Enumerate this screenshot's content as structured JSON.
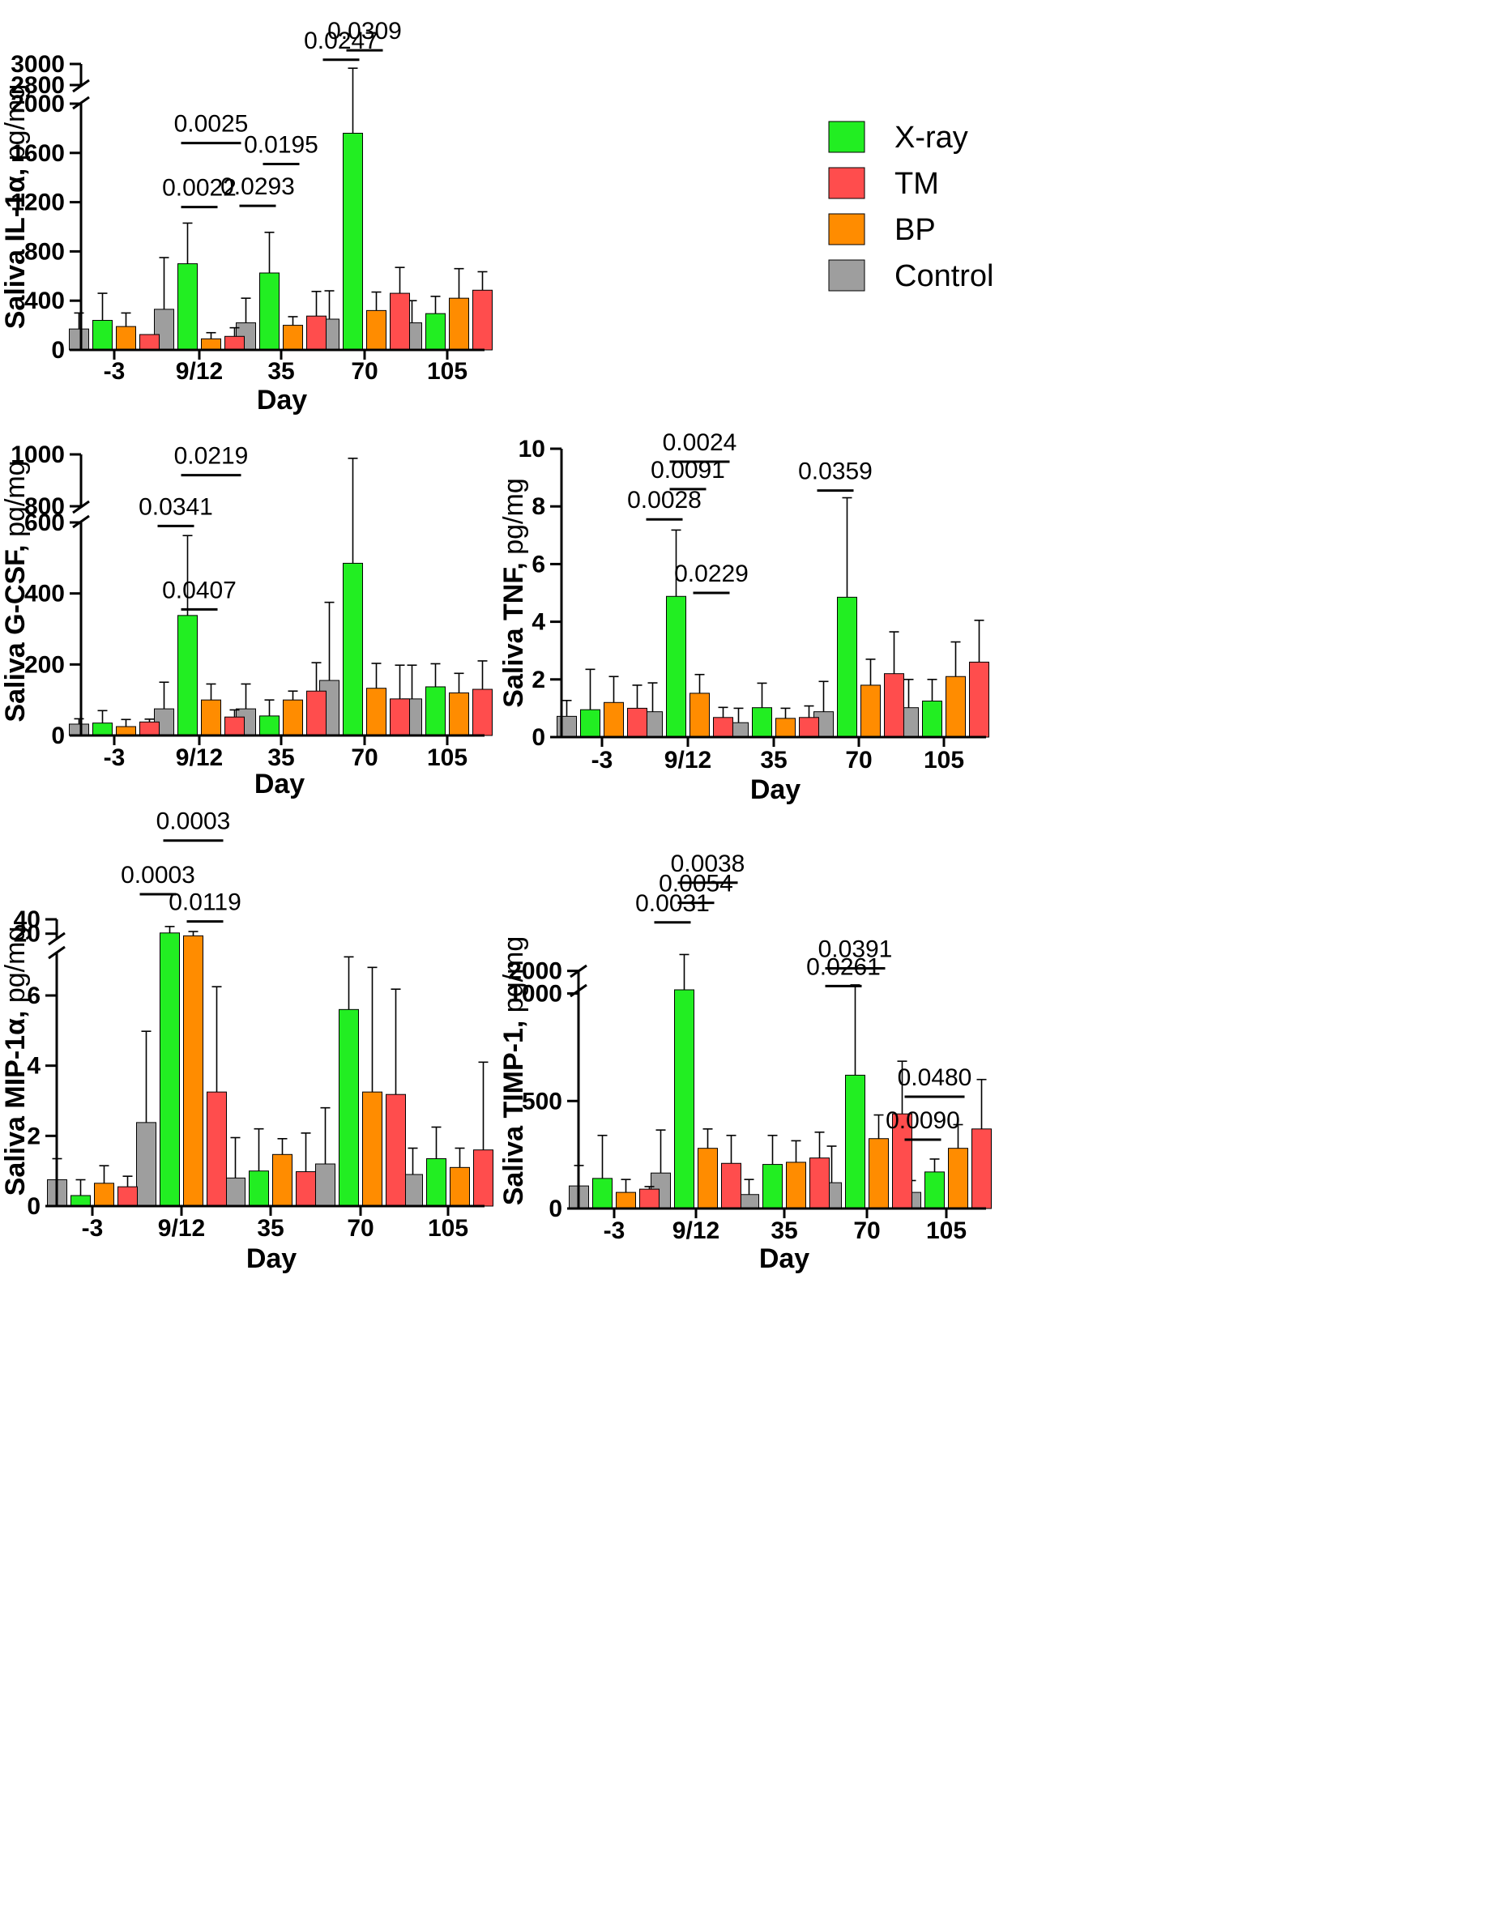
{
  "legend": {
    "entries": [
      {
        "name": "X-ray",
        "color": "#22ee22"
      },
      {
        "name": "TM",
        "color": "#ff4d4d"
      },
      {
        "name": "BP",
        "color": "#ff8c00"
      },
      {
        "name": "Control",
        "color": "#9e9e9e"
      }
    ]
  },
  "chart_data": [
    {
      "type": "bar",
      "id": "il1a",
      "ylabel_bold": "Saliva IL-1α,",
      "ylabel_unit": " pg/mg",
      "xlabel": "Day",
      "categories": [
        "-3",
        "9/12",
        "35",
        "70",
        "105"
      ],
      "axis_break": {
        "from": 2000,
        "to": 2800
      },
      "yticks": [
        0,
        400,
        800,
        1200,
        1600,
        2000,
        2800,
        3000
      ],
      "ytick_labels": [
        "0",
        "400",
        "800",
        "1200",
        "1600",
        "2000",
        "2800",
        "3000"
      ],
      "series": [
        {
          "name": "Control",
          "values": [
            170,
            330,
            220,
            250,
            220
          ],
          "errors": [
            130,
            420,
            200,
            230,
            180
          ]
        },
        {
          "name": "X-ray",
          "values": [
            240,
            700,
            625,
            1760,
            295
          ],
          "errors": [
            220,
            330,
            330,
            1200,
            140
          ]
        },
        {
          "name": "BP",
          "values": [
            190,
            90,
            200,
            320,
            420
          ],
          "errors": [
            110,
            50,
            70,
            150,
            240
          ]
        },
        {
          "name": "TM",
          "values": [
            125,
            110,
            275,
            460,
            485
          ],
          "errors": [
            0,
            70,
            200,
            210,
            150
          ]
        }
      ],
      "comparisons": [
        {
          "label": "0.0025",
          "cat": 1,
          "from": "X-ray",
          "to": "TM",
          "at": 1680
        },
        {
          "label": "0.0022",
          "cat": 1,
          "from": "X-ray",
          "to": "BP",
          "at": 1160
        },
        {
          "label": "0.0195",
          "cat": 2,
          "from": "X-ray",
          "to": "BP",
          "at": 1510
        },
        {
          "label": "0.0293",
          "cat": 2,
          "from": "Control",
          "to": "X-ray",
          "at": 1170
        },
        {
          "label": "0.0309",
          "cat": 3,
          "from": "X-ray",
          "to": "BP",
          "at": 3130
        },
        {
          "label": "0.0247",
          "cat": 3,
          "from": "Control",
          "to": "X-ray",
          "at": 3040
        }
      ]
    },
    {
      "type": "bar",
      "id": "gcsf",
      "ylabel_bold": "Saliva G-CSF,",
      "ylabel_unit": " pg/mg",
      "xlabel": "Day",
      "categories": [
        "-3",
        "9/12",
        "35",
        "70",
        "105"
      ],
      "axis_break": {
        "from": 600,
        "to": 800
      },
      "yticks": [
        0,
        200,
        400,
        600,
        800,
        1000
      ],
      "ytick_labels": [
        "0",
        "200",
        "400",
        "600",
        "800",
        "1000"
      ],
      "series": [
        {
          "name": "Control",
          "values": [
            32,
            75,
            75,
            155,
            103
          ],
          "errors": [
            15,
            75,
            70,
            220,
            95
          ]
        },
        {
          "name": "X-ray",
          "values": [
            35,
            338,
            55,
            485,
            137
          ],
          "errors": [
            35,
            225,
            45,
            500,
            65
          ]
        },
        {
          "name": "BP",
          "values": [
            25,
            100,
            100,
            133,
            120
          ],
          "errors": [
            20,
            45,
            25,
            70,
            55
          ]
        },
        {
          "name": "TM",
          "values": [
            38,
            52,
            125,
            103,
            130
          ],
          "errors": [
            8,
            20,
            80,
            95,
            80
          ]
        }
      ],
      "comparisons": [
        {
          "label": "0.0219",
          "cat": 1,
          "from": "X-ray",
          "to": "TM",
          "at": 920
        },
        {
          "label": "0.0341",
          "cat": 1,
          "from": "Control",
          "to": "X-ray",
          "at": 590
        },
        {
          "label": "0.0407",
          "cat": 1,
          "from": "X-ray",
          "to": "BP",
          "at": 355
        }
      ]
    },
    {
      "type": "bar",
      "id": "tnf",
      "ylabel_bold": "Saliva TNF,",
      "ylabel_unit": " pg/mg",
      "xlabel": "Day",
      "categories": [
        "-3",
        "9/12",
        "35",
        "70",
        "105"
      ],
      "axis_break": null,
      "yticks": [
        0,
        2,
        4,
        6,
        8,
        10
      ],
      "ytick_labels": [
        "0",
        "2",
        "4",
        "6",
        "8",
        "10"
      ],
      "series": [
        {
          "name": "Control",
          "values": [
            0.72,
            0.88,
            0.5,
            0.88,
            1.02
          ],
          "errors": [
            0.55,
            1.0,
            0.5,
            1.05,
            0.98
          ]
        },
        {
          "name": "X-ray",
          "values": [
            0.95,
            4.88,
            1.02,
            4.85,
            1.25
          ],
          "errors": [
            1.4,
            2.3,
            0.85,
            3.45,
            0.75
          ]
        },
        {
          "name": "BP",
          "values": [
            1.2,
            1.52,
            0.65,
            1.8,
            2.1
          ],
          "errors": [
            0.9,
            0.65,
            0.35,
            0.9,
            1.2
          ]
        },
        {
          "name": "TM",
          "values": [
            1.0,
            0.68,
            0.68,
            2.2,
            2.6
          ],
          "errors": [
            0.8,
            0.35,
            0.4,
            1.45,
            1.45
          ]
        }
      ],
      "comparisons": [
        {
          "label": "0.0024",
          "cat": 1,
          "from": "X-ray",
          "to": "TM",
          "at": 9.55
        },
        {
          "label": "0.0091",
          "cat": 1,
          "from": "X-ray",
          "to": "BP",
          "at": 8.6
        },
        {
          "label": "0.0028",
          "cat": 1,
          "from": "Control",
          "to": "X-ray",
          "at": 7.55
        },
        {
          "label": "0.0229",
          "cat": 1,
          "from": "BP",
          "to": "TM",
          "at": 5.0
        },
        {
          "label": "0.0359",
          "cat": 3,
          "from": "Control",
          "to": "X-ray",
          "at": 8.55
        }
      ]
    },
    {
      "type": "bar",
      "id": "mip1a",
      "ylabel_bold": "Saliva MIP-1α,",
      "ylabel_unit": " pg/mg",
      "xlabel": "Day",
      "categories": [
        "-3",
        "9/12",
        "35",
        "70",
        "105"
      ],
      "axis_break": {
        "from": 7.2,
        "to": 14
      },
      "yticks": [
        0,
        2,
        4,
        6,
        20,
        40
      ],
      "ytick_labels": [
        "0",
        "2",
        "4",
        "6",
        "20",
        "40"
      ],
      "series": [
        {
          "name": "Control",
          "values": [
            0.75,
            2.38,
            0.8,
            1.2,
            0.9
          ],
          "errors": [
            0.6,
            2.6,
            1.15,
            1.6,
            0.75
          ]
        },
        {
          "name": "X-ray",
          "values": [
            0.3,
            21,
            1.0,
            5.6,
            1.35
          ],
          "errors": [
            0.45,
            9,
            1.2,
            1.5,
            0.9
          ]
        },
        {
          "name": "BP",
          "values": [
            0.65,
            17,
            1.47,
            3.25,
            1.1
          ],
          "errors": [
            0.5,
            6,
            0.45,
            3.55,
            0.55
          ]
        },
        {
          "name": "TM",
          "values": [
            0.55,
            3.25,
            0.98,
            3.18,
            1.6
          ],
          "errors": [
            0.3,
            3.0,
            1.1,
            3.0,
            2.5
          ]
        }
      ],
      "comparisons": [
        {
          "label": "0.0003",
          "cat": 1,
          "from": "X-ray",
          "to": "TM",
          "at": 150
        },
        {
          "label": "0.0003",
          "cat": 1,
          "from": "Control",
          "to": "X-ray",
          "at": 75
        },
        {
          "label": "0.0119",
          "cat": 1,
          "from": "BP",
          "to": "TM",
          "at": 37
        }
      ]
    },
    {
      "type": "bar",
      "id": "timp1",
      "ylabel_bold": "Saliva TIMP-1,",
      "ylabel_unit": " pg/mg",
      "xlabel": "Day",
      "categories": [
        "-3",
        "9/12",
        "35",
        "70",
        "105"
      ],
      "axis_break": {
        "from": 1100,
        "to": 1850
      },
      "yticks": [
        0,
        500,
        1000,
        2000
      ],
      "ytick_labels": [
        "0",
        "500",
        "1000",
        "2000"
      ],
      "series": [
        {
          "name": "Control",
          "values": [
            105,
            165,
            65,
            120,
            75
          ],
          "errors": [
            95,
            200,
            70,
            170,
            55
          ]
        },
        {
          "name": "X-ray",
          "values": [
            140,
            1850,
            205,
            620,
            170
          ],
          "errors": [
            200,
            280,
            135,
            420,
            60
          ]
        },
        {
          "name": "BP",
          "values": [
            75,
            280,
            215,
            325,
            280
          ],
          "errors": [
            60,
            90,
            100,
            110,
            110
          ]
        },
        {
          "name": "TM",
          "values": [
            90,
            210,
            235,
            440,
            370
          ],
          "errors": [
            12,
            130,
            120,
            245,
            230
          ]
        }
      ],
      "comparisons": [
        {
          "label": "0.0038",
          "cat": 1,
          "from": "X-ray",
          "to": "TM",
          "at": 2700
        },
        {
          "label": "0.0054",
          "cat": 1,
          "from": "X-ray",
          "to": "BP",
          "at": 2540
        },
        {
          "label": "0.0031",
          "cat": 1,
          "from": "Control",
          "to": "X-ray",
          "at": 2385
        },
        {
          "label": "0.0391",
          "cat": 3,
          "from": "Control",
          "to": "BP",
          "at": 2020
        },
        {
          "label": "0.0261",
          "cat": 3,
          "from": "Control",
          "to": "X-ray",
          "at": 1880
        },
        {
          "label": "0.0480",
          "cat": 4,
          "from": "Control",
          "to": "BP",
          "at": 520
        },
        {
          "label": "0.0090",
          "cat": 4,
          "from": "Control",
          "to": "X-ray",
          "at": 320
        }
      ]
    }
  ]
}
